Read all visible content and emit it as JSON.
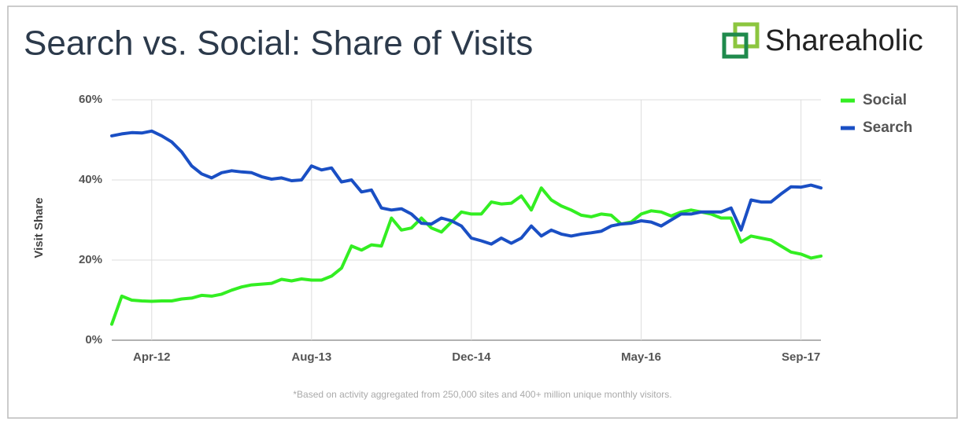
{
  "chart_data": {
    "type": "line",
    "title": "Search vs. Social: Share of Visits",
    "brand": "Shareaholic",
    "y_label": "Visit Share",
    "footnote": "*Based on activity aggregated from 250,000 sites and 400+ million unique monthly visitors.",
    "categories": [
      null,
      null,
      null,
      null,
      "Apr-12",
      null,
      null,
      null,
      null,
      null,
      null,
      null,
      null,
      null,
      null,
      null,
      null,
      null,
      null,
      null,
      "Aug-13",
      null,
      null,
      null,
      null,
      null,
      null,
      null,
      null,
      null,
      null,
      null,
      null,
      null,
      null,
      null,
      "Dec-14",
      null,
      null,
      null,
      null,
      null,
      null,
      null,
      null,
      null,
      null,
      null,
      null,
      null,
      null,
      null,
      null,
      "May-16",
      null,
      null,
      null,
      null,
      null,
      null,
      null,
      null,
      null,
      null,
      null,
      null,
      null,
      null,
      null,
      "Sep-17",
      null,
      null
    ],
    "series": [
      {
        "name": "Social",
        "color": "#33ee22",
        "values": [
          4,
          11,
          10,
          9.8,
          9.7,
          9.8,
          9.8,
          10.3,
          10.5,
          11.2,
          11,
          11.5,
          12.5,
          13.3,
          13.8,
          14,
          14.2,
          15.2,
          14.8,
          15.3,
          15,
          15,
          16,
          18,
          23.5,
          22.5,
          23.8,
          23.5,
          30.5,
          27.5,
          28,
          30.5,
          28,
          27,
          29.5,
          32,
          31.5,
          31.5,
          34.5,
          34,
          34.2,
          36,
          32.5,
          38,
          35,
          33.5,
          32.5,
          31.2,
          30.8,
          31.5,
          31.2,
          29,
          29.5,
          31.5,
          32.3,
          32,
          31,
          32,
          32.5,
          32,
          31.5,
          30.5,
          30.5,
          24.5,
          26,
          25.5,
          25,
          23.5,
          22,
          21.5,
          20.5,
          21
        ]
      },
      {
        "name": "Search",
        "color": "#1a4fc4",
        "values": [
          51,
          51.5,
          51.8,
          51.7,
          52.2,
          51,
          49.5,
          47,
          43.5,
          41.5,
          40.5,
          41.8,
          42.3,
          42,
          41.8,
          40.8,
          40.2,
          40.5,
          39.8,
          40,
          43.5,
          42.5,
          43,
          39.5,
          40,
          37,
          37.5,
          33,
          32.5,
          32.8,
          31.5,
          29.2,
          29,
          30.5,
          29.8,
          28.5,
          25.5,
          24.8,
          24,
          25.5,
          24.2,
          25.5,
          28.5,
          26,
          27.5,
          26.5,
          26,
          26.5,
          26.8,
          27.2,
          28.5,
          29,
          29.2,
          29.8,
          29.5,
          28.5,
          30,
          31.5,
          31.5,
          32,
          32,
          32,
          33,
          27.5,
          35,
          34.5,
          34.5,
          36.5,
          38.3,
          38.2,
          38.7,
          38
        ]
      }
    ],
    "ylim": [
      0,
      60
    ],
    "yticks": [
      {
        "value": 0,
        "label": "0%"
      },
      {
        "value": 20,
        "label": "20%"
      },
      {
        "value": 40,
        "label": "40%"
      },
      {
        "value": 60,
        "label": "60%"
      }
    ],
    "grid": true,
    "legend": "right"
  }
}
